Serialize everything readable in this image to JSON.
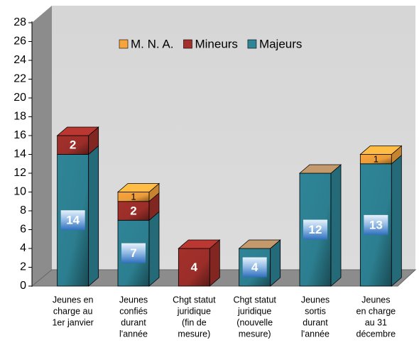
{
  "chart_data": {
    "type": "bar",
    "stacked": true,
    "three_d": true,
    "categories": [
      [
        "Jeunes en",
        "charge au",
        "1er janvier"
      ],
      [
        "Jeunes",
        "confiés",
        "durant",
        "l'année"
      ],
      [
        "Chgt statut",
        "juridique",
        "(fin de",
        "mesure)"
      ],
      [
        "Chgt statut",
        "juridique",
        "(nouvelle",
        "mesure)"
      ],
      [
        "Jeunes",
        "sortis",
        "durant",
        "l'année"
      ],
      [
        "Jeunes",
        "en charge",
        "au 31",
        "décembre"
      ]
    ],
    "series": [
      {
        "name": "Majeurs",
        "color": "#2e8597",
        "values": [
          14,
          7,
          0,
          4,
          12,
          13
        ]
      },
      {
        "name": "Mineurs",
        "color": "#a3302b",
        "values": [
          2,
          2,
          4,
          0,
          0,
          0
        ]
      },
      {
        "name": "M. N. A.",
        "color": "#f7a43c",
        "values": [
          0,
          1,
          0,
          0,
          0,
          1
        ]
      }
    ],
    "legend_order": [
      2,
      1,
      0
    ],
    "legend": "top",
    "ylim": [
      0,
      28
    ],
    "yticks": [
      0,
      2,
      4,
      6,
      8,
      10,
      12,
      14,
      16,
      18,
      20,
      22,
      24,
      26,
      28
    ]
  }
}
